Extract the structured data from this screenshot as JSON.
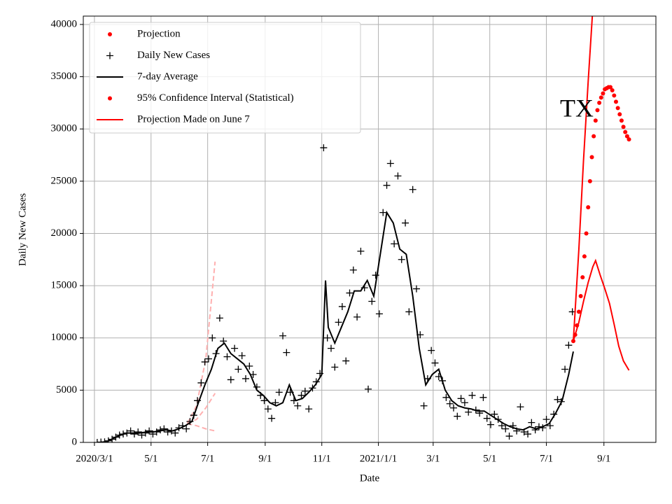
{
  "chart_data": {
    "type": "line",
    "x_label": "Date",
    "y_label": "Daily New Cases",
    "annotation": "TX",
    "xlim": [
      "2020-02-18",
      "2021-10-27"
    ],
    "ylim": [
      0,
      40800
    ],
    "xticks": [
      {
        "value": "2020-03-01",
        "label": "2020/3/1"
      },
      {
        "value": "2020-05-01",
        "label": "5/1"
      },
      {
        "value": "2020-07-01",
        "label": "7/1"
      },
      {
        "value": "2020-09-01",
        "label": "9/1"
      },
      {
        "value": "2020-11-01",
        "label": "11/1"
      },
      {
        "value": "2021-01-01",
        "label": "2021/1/1"
      },
      {
        "value": "2021-03-01",
        "label": "3/1"
      },
      {
        "value": "2021-05-01",
        "label": "5/1"
      },
      {
        "value": "2021-07-01",
        "label": "7/1"
      },
      {
        "value": "2021-09-01",
        "label": "9/1"
      }
    ],
    "yticks": [
      0,
      5000,
      10000,
      15000,
      20000,
      25000,
      30000,
      35000,
      40000
    ],
    "grid": true,
    "legend": "upper left",
    "series": [
      {
        "name": "Projection",
        "color": "#ff0000",
        "style": "dots",
        "x": [
          "2021-07-30",
          "2021-08-01",
          "2021-08-03",
          "2021-08-05",
          "2021-08-07",
          "2021-08-09",
          "2021-08-11",
          "2021-08-13",
          "2021-08-15",
          "2021-08-17",
          "2021-08-19",
          "2021-08-21",
          "2021-08-23",
          "2021-08-25",
          "2021-08-27",
          "2021-08-29",
          "2021-08-31",
          "2021-09-02",
          "2021-09-04",
          "2021-09-06",
          "2021-09-08",
          "2021-09-10",
          "2021-09-12",
          "2021-09-14",
          "2021-09-16",
          "2021-09-18",
          "2021-09-20",
          "2021-09-22",
          "2021-09-24",
          "2021-09-26",
          "2021-09-28"
        ],
        "values": [
          9700,
          10300,
          11200,
          12500,
          14000,
          15800,
          17800,
          20000,
          22500,
          25000,
          27300,
          29300,
          30800,
          31800,
          32500,
          33000,
          33400,
          33800,
          33900,
          34000,
          34000,
          33700,
          33200,
          32600,
          32000,
          31400,
          30800,
          30200,
          29700,
          29300,
          29000
        ]
      },
      {
        "name": "Daily New Cases",
        "color": "#000000",
        "style": "plus",
        "x": [
          "2020-03-04",
          "2020-03-08",
          "2020-03-12",
          "2020-03-16",
          "2020-03-20",
          "2020-03-24",
          "2020-03-28",
          "2020-04-01",
          "2020-04-05",
          "2020-04-09",
          "2020-04-13",
          "2020-04-17",
          "2020-04-21",
          "2020-04-25",
          "2020-04-29",
          "2020-05-03",
          "2020-05-07",
          "2020-05-11",
          "2020-05-15",
          "2020-05-19",
          "2020-05-23",
          "2020-05-27",
          "2020-05-31",
          "2020-06-04",
          "2020-06-08",
          "2020-06-12",
          "2020-06-16",
          "2020-06-20",
          "2020-06-24",
          "2020-06-28",
          "2020-07-02",
          "2020-07-06",
          "2020-07-10",
          "2020-07-14",
          "2020-07-18",
          "2020-07-22",
          "2020-07-26",
          "2020-07-30",
          "2020-08-03",
          "2020-08-07",
          "2020-08-11",
          "2020-08-15",
          "2020-08-19",
          "2020-08-23",
          "2020-08-27",
          "2020-08-31",
          "2020-09-04",
          "2020-09-08",
          "2020-09-12",
          "2020-09-16",
          "2020-09-20",
          "2020-09-24",
          "2020-09-28",
          "2020-10-02",
          "2020-10-06",
          "2020-10-10",
          "2020-10-14",
          "2020-10-18",
          "2020-10-22",
          "2020-10-26",
          "2020-10-30",
          "2020-11-03",
          "2020-11-07",
          "2020-11-11",
          "2020-11-15",
          "2020-11-19",
          "2020-11-23",
          "2020-11-27",
          "2020-12-01",
          "2020-12-05",
          "2020-12-09",
          "2020-12-13",
          "2020-12-17",
          "2020-12-21",
          "2020-12-25",
          "2020-12-29",
          "2021-01-02",
          "2021-01-06",
          "2021-01-10",
          "2021-01-14",
          "2021-01-18",
          "2021-01-22",
          "2021-01-26",
          "2021-01-30",
          "2021-02-03",
          "2021-02-07",
          "2021-02-11",
          "2021-02-15",
          "2021-02-19",
          "2021-02-23",
          "2021-02-27",
          "2021-03-03",
          "2021-03-07",
          "2021-03-11",
          "2021-03-15",
          "2021-03-19",
          "2021-03-23",
          "2021-03-27",
          "2021-03-31",
          "2021-04-04",
          "2021-04-08",
          "2021-04-12",
          "2021-04-16",
          "2021-04-20",
          "2021-04-24",
          "2021-04-28",
          "2021-05-02",
          "2021-05-06",
          "2021-05-10",
          "2021-05-14",
          "2021-05-18",
          "2021-05-22",
          "2021-05-26",
          "2021-05-30",
          "2021-06-03",
          "2021-06-07",
          "2021-06-11",
          "2021-06-15",
          "2021-06-19",
          "2021-06-23",
          "2021-06-27",
          "2021-07-01",
          "2021-07-05",
          "2021-07-09",
          "2021-07-13",
          "2021-07-17",
          "2021-07-21",
          "2021-07-25",
          "2021-07-29"
        ],
        "values": [
          0,
          30,
          50,
          150,
          300,
          500,
          700,
          800,
          900,
          1100,
          800,
          1000,
          700,
          900,
          1100,
          800,
          1000,
          1200,
          1300,
          1000,
          1100,
          900,
          1400,
          1600,
          1300,
          2000,
          2600,
          4000,
          5700,
          7700,
          8000,
          10000,
          8500,
          11900,
          9700,
          8200,
          6000,
          9000,
          7000,
          8300,
          6100,
          7300,
          6500,
          5300,
          4500,
          4000,
          3200,
          2300,
          3800,
          4800,
          10200,
          8600,
          4800,
          4000,
          3500,
          4500,
          4900,
          3200,
          5200,
          5800,
          6600,
          28200,
          10000,
          9000,
          7200,
          11500,
          13000,
          7800,
          14300,
          16500,
          12000,
          18300,
          14800,
          5100,
          13500,
          16000,
          12300,
          22000,
          24600,
          26700,
          19000,
          25500,
          17500,
          21000,
          12500,
          24200,
          14700,
          10300,
          3500,
          6100,
          8800,
          7600,
          6300,
          5900,
          4300,
          3700,
          3300,
          2500,
          4200,
          3800,
          2900,
          4500,
          3100,
          2800,
          4300,
          2300,
          1700,
          2700,
          2200,
          1600,
          1300,
          600,
          1600,
          1100,
          3400,
          1000,
          800,
          1900,
          1200,
          1500,
          1400,
          2200,
          1600,
          2700,
          4100,
          3900,
          7000,
          9300,
          12500
        ]
      },
      {
        "name": "7-day Average",
        "color": "#000000",
        "style": "line",
        "x": [
          "2020-03-08",
          "2020-03-15",
          "2020-03-22",
          "2020-03-29",
          "2020-04-05",
          "2020-04-12",
          "2020-04-19",
          "2020-04-26",
          "2020-05-03",
          "2020-05-10",
          "2020-05-17",
          "2020-05-24",
          "2020-05-31",
          "2020-06-07",
          "2020-06-14",
          "2020-06-21",
          "2020-06-28",
          "2020-07-05",
          "2020-07-12",
          "2020-07-19",
          "2020-07-26",
          "2020-08-02",
          "2020-08-09",
          "2020-08-16",
          "2020-08-23",
          "2020-08-30",
          "2020-09-06",
          "2020-09-13",
          "2020-09-20",
          "2020-09-27",
          "2020-10-04",
          "2020-10-11",
          "2020-10-18",
          "2020-10-25",
          "2020-11-01",
          "2020-11-05",
          "2020-11-08",
          "2020-11-15",
          "2020-11-22",
          "2020-11-29",
          "2020-12-06",
          "2020-12-13",
          "2020-12-20",
          "2020-12-27",
          "2021-01-03",
          "2021-01-10",
          "2021-01-17",
          "2021-01-24",
          "2021-01-31",
          "2021-02-07",
          "2021-02-14",
          "2021-02-21",
          "2021-02-28",
          "2021-03-07",
          "2021-03-14",
          "2021-03-21",
          "2021-03-28",
          "2021-04-04",
          "2021-04-11",
          "2021-04-18",
          "2021-04-25",
          "2021-05-02",
          "2021-05-09",
          "2021-05-16",
          "2021-05-23",
          "2021-05-30",
          "2021-06-06",
          "2021-06-13",
          "2021-06-20",
          "2021-06-27",
          "2021-07-04",
          "2021-07-11",
          "2021-07-18",
          "2021-07-25",
          "2021-07-30"
        ],
        "values": [
          0,
          100,
          400,
          700,
          900,
          900,
          900,
          1000,
          1000,
          1100,
          1200,
          1100,
          1300,
          1600,
          2000,
          3800,
          5500,
          7000,
          9000,
          9500,
          8500,
          8000,
          7500,
          6500,
          5000,
          4500,
          3800,
          3500,
          3800,
          5500,
          4000,
          4200,
          4800,
          5500,
          6500,
          15500,
          11000,
          9500,
          11000,
          12500,
          14500,
          14500,
          15500,
          14000,
          18000,
          22000,
          21000,
          18500,
          18000,
          14000,
          9000,
          5500,
          6500,
          7000,
          5000,
          4000,
          3500,
          3300,
          3200,
          3000,
          3000,
          2600,
          2200,
          1800,
          1500,
          1300,
          1200,
          1500,
          1300,
          1500,
          1800,
          2800,
          4000,
          6500,
          8700
        ]
      },
      {
        "name": "95% Confidence Interval (Statistical)",
        "color": "#ff0000",
        "style": "dots",
        "x": [],
        "values": []
      },
      {
        "name": "Projection Made on June 7",
        "color": "#ff0000",
        "style": "line",
        "x": [
          "2021-07-30",
          "2021-08-05",
          "2021-08-10",
          "2021-08-15",
          "2021-08-20",
          null,
          "2021-07-30",
          "2021-08-05",
          "2021-08-10",
          "2021-08-15",
          "2021-08-20",
          "2021-08-23",
          "2021-08-28",
          "2021-09-02",
          "2021-09-07",
          "2021-09-12",
          "2021-09-17",
          "2021-09-22",
          "2021-09-28"
        ],
        "values": [
          9700,
          18500,
          27000,
          34500,
          41500,
          null,
          9700,
          11500,
          13500,
          15300,
          16800,
          17400,
          16000,
          14700,
          13300,
          11300,
          9200,
          7800,
          6900
        ]
      },
      {
        "color": "#ffb0b0",
        "style": "dashed",
        "x": [
          "2020-06-09",
          "2020-06-19",
          "2020-06-29",
          "2020-07-09"
        ],
        "values": [
          1800,
          3500,
          8000,
          17300
        ]
      },
      {
        "color": "#ffb0b0",
        "style": "dashed",
        "x": [
          "2020-06-09",
          "2020-06-19",
          "2020-06-29",
          "2020-07-09"
        ],
        "values": [
          1800,
          2200,
          3300,
          4700
        ]
      },
      {
        "color": "#ffb0b0",
        "style": "dashed",
        "x": [
          "2020-06-09",
          "2020-06-19",
          "2020-06-29",
          "2020-07-09"
        ],
        "values": [
          1800,
          1600,
          1300,
          1100
        ]
      }
    ]
  }
}
